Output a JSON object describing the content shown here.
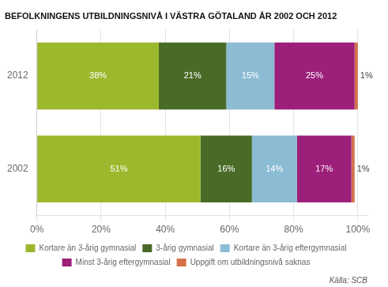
{
  "chart_data": {
    "type": "bar",
    "orientation": "horizontal",
    "stacked": true,
    "title": "BEFOLKNINGENS UTBILDNINGSNIVÅ I VÄSTRA GÖTALAND ÅR 2002 OCH 2012",
    "annotations": [
      "Källa: SCB"
    ],
    "categories": [
      "2012",
      "2002"
    ],
    "series": [
      {
        "name": "Kortare än 3-årig gymnasial",
        "color": "#9cb82c",
        "values": [
          38,
          51
        ],
        "value_labels": [
          "38%",
          "51%"
        ]
      },
      {
        "name": "3-årig gymnasial",
        "color": "#4a6b28",
        "values": [
          21,
          16
        ],
        "value_labels": [
          "21%",
          "16%"
        ]
      },
      {
        "name": "Kortare än 3-årig eftergymnasial",
        "color": "#8bbcd4",
        "values": [
          15,
          14
        ],
        "value_labels": [
          "15%",
          "14%"
        ]
      },
      {
        "name": "Minst 3-årig eftergymnasial",
        "color": "#9c1f7a",
        "values": [
          25,
          17
        ],
        "value_labels": [
          "25%",
          "17%"
        ]
      },
      {
        "name": "Uppgift om utbildningsnivå saknas",
        "color": "#d4714a",
        "values": [
          1,
          1
        ],
        "value_labels": [
          "1%",
          "1%"
        ]
      }
    ],
    "xlim": [
      0,
      103
    ],
    "xticks": [
      {
        "value": 0,
        "label": "0%"
      },
      {
        "value": 20,
        "label": "20%"
      },
      {
        "value": 40,
        "label": "40%"
      },
      {
        "value": 60,
        "label": "60%"
      },
      {
        "value": 80,
        "label": "80%"
      },
      {
        "value": 100,
        "label": "100%"
      }
    ],
    "grid": true,
    "legend": "bottom",
    "data_labels": true
  }
}
